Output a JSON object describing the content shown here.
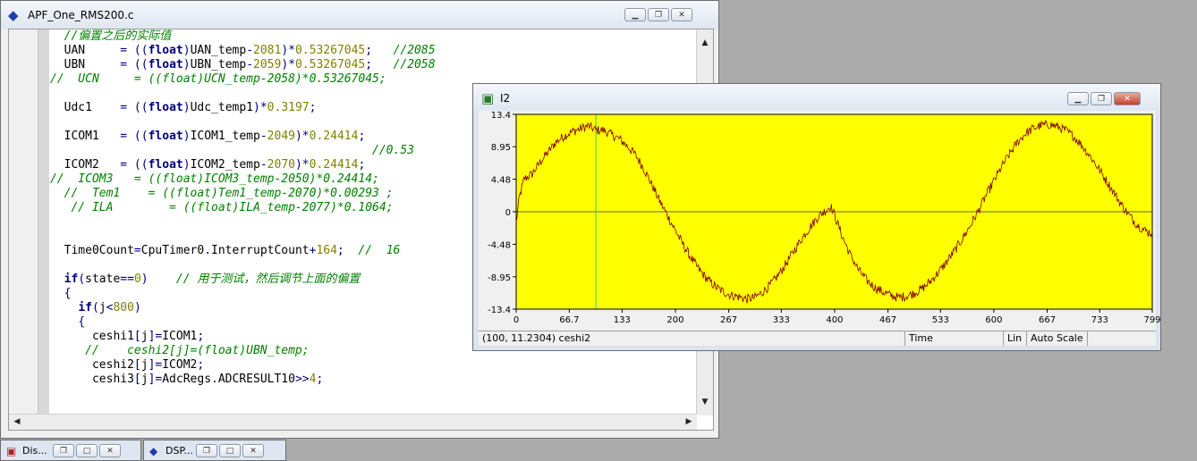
{
  "editor": {
    "title": "APF_One_RMS200.c",
    "icon": "diamond-file-icon",
    "lines": [
      [
        [
          "cm",
          "  //偏置之后的实际值"
        ]
      ],
      [
        [
          "tx",
          "  UAN     "
        ],
        [
          "op",
          "= (("
        ],
        [
          "kw",
          "float"
        ],
        [
          "op",
          ")"
        ],
        [
          "tx",
          "UAN_temp"
        ],
        [
          "op",
          "-"
        ],
        [
          "num",
          "2081"
        ],
        [
          "op",
          ")*"
        ],
        [
          "num",
          "0.53267045"
        ],
        [
          "op",
          ";"
        ],
        [
          "tx",
          "   "
        ],
        [
          "cm",
          "//2085"
        ]
      ],
      [
        [
          "tx",
          "  UBN     "
        ],
        [
          "op",
          "= (("
        ],
        [
          "kw",
          "float"
        ],
        [
          "op",
          ")"
        ],
        [
          "tx",
          "UBN_temp"
        ],
        [
          "op",
          "-"
        ],
        [
          "num",
          "2059"
        ],
        [
          "op",
          ")*"
        ],
        [
          "num",
          "0.53267045"
        ],
        [
          "op",
          ";"
        ],
        [
          "tx",
          "   "
        ],
        [
          "cm",
          "//2058"
        ]
      ],
      [
        [
          "cm",
          "//  UCN     = ((float)UCN_temp-2058)*0.53267045;"
        ]
      ],
      [],
      [
        [
          "tx",
          "  Udc1    "
        ],
        [
          "op",
          "= (("
        ],
        [
          "kw",
          "float"
        ],
        [
          "op",
          ")"
        ],
        [
          "tx",
          "Udc_temp1"
        ],
        [
          "op",
          ")*"
        ],
        [
          "num",
          "0.3197"
        ],
        [
          "op",
          ";"
        ]
      ],
      [],
      [
        [
          "tx",
          "  ICOM1   "
        ],
        [
          "op",
          "= (("
        ],
        [
          "kw",
          "float"
        ],
        [
          "op",
          ")"
        ],
        [
          "tx",
          "ICOM1_temp"
        ],
        [
          "op",
          "-"
        ],
        [
          "num",
          "2049"
        ],
        [
          "op",
          ")*"
        ],
        [
          "num",
          "0.24414"
        ],
        [
          "op",
          ";"
        ]
      ],
      [
        [
          "cm",
          "                                              //0.53"
        ]
      ],
      [
        [
          "tx",
          "  ICOM2   "
        ],
        [
          "op",
          "= (("
        ],
        [
          "kw",
          "float"
        ],
        [
          "op",
          ")"
        ],
        [
          "tx",
          "ICOM2_temp"
        ],
        [
          "op",
          "-"
        ],
        [
          "num",
          "2070"
        ],
        [
          "op",
          ")*"
        ],
        [
          "num",
          "0.24414"
        ],
        [
          "op",
          ";"
        ]
      ],
      [
        [
          "cm",
          "//  ICOM3   = ((float)ICOM3_temp-2050)*0.24414;"
        ]
      ],
      [
        [
          "cm",
          "  //  Tem1    = ((float)Tem1_temp-2070)*0.00293 ;"
        ]
      ],
      [
        [
          "cm",
          "   // ILA        = ((float)ILA_temp-2077)*0.1064;"
        ]
      ],
      [],
      [],
      [
        [
          "tx",
          "  Time0Count"
        ],
        [
          "op",
          "="
        ],
        [
          "tx",
          "CpuTimer0"
        ],
        [
          "op",
          "."
        ],
        [
          "tx",
          "InterruptCount"
        ],
        [
          "op",
          "+"
        ],
        [
          "num",
          "164"
        ],
        [
          "op",
          ";"
        ],
        [
          "tx",
          "  "
        ],
        [
          "cm",
          "//  16"
        ]
      ],
      [],
      [
        [
          "tx",
          "  "
        ],
        [
          "kw",
          "if"
        ],
        [
          "op",
          "("
        ],
        [
          "tx",
          "state"
        ],
        [
          "op",
          "=="
        ],
        [
          "num",
          "0"
        ],
        [
          "op",
          ")"
        ],
        [
          "tx",
          "    "
        ],
        [
          "cm",
          "// 用于测试，然后调节上面的偏置"
        ]
      ],
      [
        [
          "op",
          "  {"
        ]
      ],
      [
        [
          "tx",
          "    "
        ],
        [
          "kw",
          "if"
        ],
        [
          "op",
          "("
        ],
        [
          "tx",
          "j"
        ],
        [
          "op",
          "<"
        ],
        [
          "num",
          "800"
        ],
        [
          "op",
          ")"
        ]
      ],
      [
        [
          "op",
          "    {"
        ]
      ],
      [
        [
          "tx",
          "      ceshi1"
        ],
        [
          "op",
          "["
        ],
        [
          "tx",
          "j"
        ],
        [
          "op",
          "]="
        ],
        [
          "tx",
          "ICOM1"
        ],
        [
          "op",
          ";"
        ]
      ],
      [
        [
          "cm",
          "     //    ceshi2[j]=(float)UBN_temp;"
        ]
      ],
      [
        [
          "tx",
          "      ceshi2"
        ],
        [
          "op",
          "["
        ],
        [
          "tx",
          "j"
        ],
        [
          "op",
          "]="
        ],
        [
          "tx",
          "ICOM2"
        ],
        [
          "op",
          ";"
        ]
      ],
      [
        [
          "tx",
          "      ceshi3"
        ],
        [
          "op",
          "["
        ],
        [
          "tx",
          "j"
        ],
        [
          "op",
          "]="
        ],
        [
          "tx",
          "AdcRegs"
        ],
        [
          "op",
          "."
        ],
        [
          "tx",
          "ADCRESULT10"
        ],
        [
          "op",
          ">>"
        ],
        [
          "num",
          "4"
        ],
        [
          "op",
          ";"
        ]
      ]
    ]
  },
  "graph": {
    "title": "I2",
    "icon": "graph-window-icon",
    "status": {
      "cursor": "(100, 11.2304)  ceshi2",
      "axis_mode": "Time",
      "scale_type": "Lin",
      "scale_mode": "Auto Scale"
    }
  },
  "chart_data": {
    "type": "line",
    "title": "",
    "xlabel": "",
    "ylabel": "",
    "xlim": [
      0,
      799
    ],
    "ylim": [
      -13.4,
      13.4
    ],
    "x_ticks": [
      "0",
      "66.7",
      "133",
      "200",
      "267",
      "333",
      "400",
      "467",
      "533",
      "600",
      "667",
      "733",
      "799"
    ],
    "y_ticks": [
      "13.4",
      "8.95",
      "4.48",
      "0",
      "-4.48",
      "-8.95",
      "-13.4"
    ],
    "background_color": "#ffff00",
    "line_color": "#800000",
    "cursor_x": 100,
    "grid": false,
    "series": [
      {
        "name": "ceshi2",
        "points": [
          [
            0,
            -1.5
          ],
          [
            4,
            2.0
          ],
          [
            10,
            4.5
          ],
          [
            20,
            5.2
          ],
          [
            30,
            6.8
          ],
          [
            40,
            8.2
          ],
          [
            50,
            9.6
          ],
          [
            60,
            10.4
          ],
          [
            70,
            11.0
          ],
          [
            80,
            11.4
          ],
          [
            90,
            11.8
          ],
          [
            100,
            11.23
          ],
          [
            110,
            11.2
          ],
          [
            120,
            10.6
          ],
          [
            130,
            10.0
          ],
          [
            140,
            9.0
          ],
          [
            150,
            7.8
          ],
          [
            160,
            6.0
          ],
          [
            170,
            3.8
          ],
          [
            180,
            1.5
          ],
          [
            190,
            -0.5
          ],
          [
            200,
            -2.6
          ],
          [
            210,
            -4.6
          ],
          [
            220,
            -6.4
          ],
          [
            230,
            -8.0
          ],
          [
            240,
            -9.3
          ],
          [
            250,
            -10.3
          ],
          [
            260,
            -11.0
          ],
          [
            270,
            -11.5
          ],
          [
            280,
            -11.7
          ],
          [
            290,
            -12.0
          ],
          [
            300,
            -11.8
          ],
          [
            310,
            -11.0
          ],
          [
            320,
            -10.0
          ],
          [
            330,
            -8.6
          ],
          [
            340,
            -7.0
          ],
          [
            350,
            -5.2
          ],
          [
            360,
            -3.5
          ],
          [
            370,
            -2.0
          ],
          [
            380,
            -0.6
          ],
          [
            390,
            0.3
          ],
          [
            395,
            0.8
          ],
          [
            400,
            -0.5
          ],
          [
            410,
            -3.5
          ],
          [
            420,
            -6.0
          ],
          [
            430,
            -8.0
          ],
          [
            440,
            -9.4
          ],
          [
            450,
            -10.4
          ],
          [
            460,
            -11.0
          ],
          [
            470,
            -11.5
          ],
          [
            480,
            -11.8
          ],
          [
            490,
            -11.6
          ],
          [
            500,
            -11.2
          ],
          [
            510,
            -10.6
          ],
          [
            520,
            -9.6
          ],
          [
            530,
            -8.4
          ],
          [
            540,
            -7.0
          ],
          [
            550,
            -5.5
          ],
          [
            560,
            -3.8
          ],
          [
            570,
            -2.0
          ],
          [
            580,
            0.0
          ],
          [
            590,
            2.2
          ],
          [
            600,
            4.2
          ],
          [
            610,
            6.2
          ],
          [
            620,
            8.0
          ],
          [
            630,
            9.6
          ],
          [
            640,
            10.8
          ],
          [
            650,
            11.5
          ],
          [
            660,
            11.9
          ],
          [
            670,
            12.0
          ],
          [
            680,
            11.7
          ],
          [
            690,
            11.2
          ],
          [
            700,
            10.4
          ],
          [
            710,
            9.2
          ],
          [
            720,
            7.8
          ],
          [
            730,
            6.2
          ],
          [
            740,
            4.5
          ],
          [
            750,
            2.8
          ],
          [
            760,
            1.0
          ],
          [
            770,
            -0.5
          ],
          [
            780,
            -1.8
          ],
          [
            790,
            -2.6
          ],
          [
            799,
            -3.0
          ]
        ]
      }
    ]
  },
  "taskbar": [
    {
      "title": "Dis...",
      "icon": "disassembly-window-icon"
    },
    {
      "title": "DSP...",
      "icon": "diamond-file-icon"
    }
  ]
}
